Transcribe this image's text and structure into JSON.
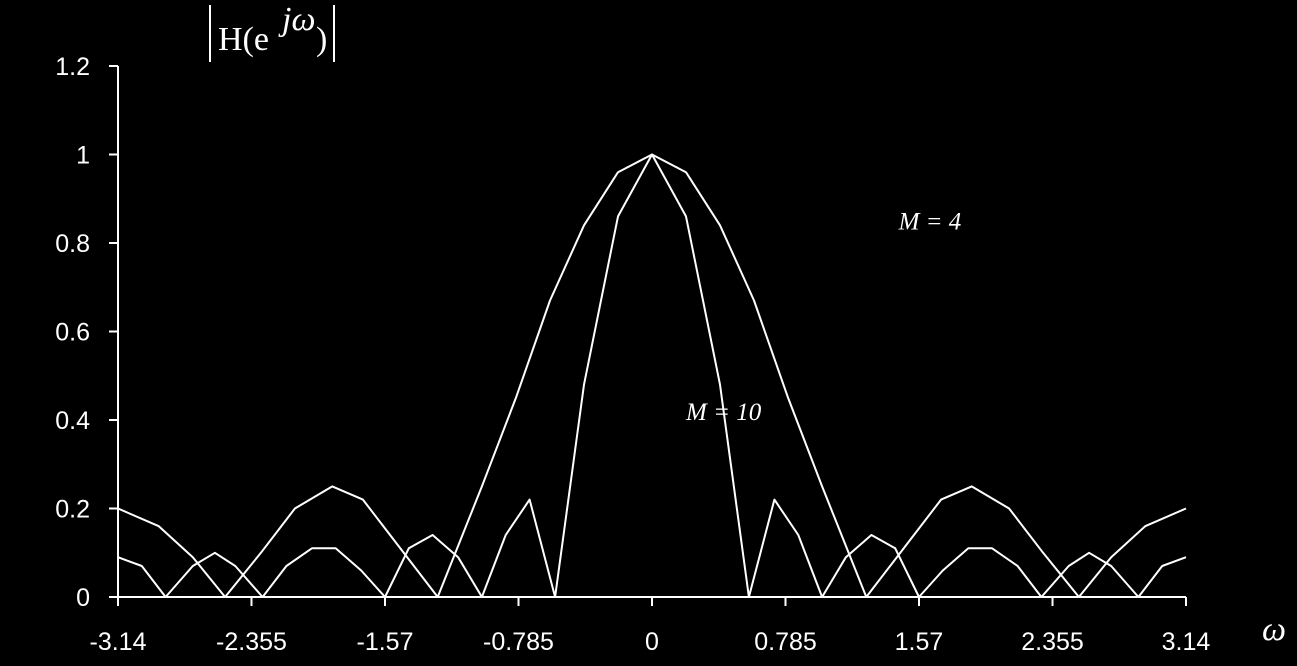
{
  "chart_data": {
    "type": "line",
    "title": "",
    "xlabel": "ω",
    "ylabel": "|H(e^jω)|",
    "xlim": [
      -3.14,
      3.14
    ],
    "ylim": [
      0,
      1.2
    ],
    "grid": false,
    "xticks": [
      -3.14,
      -2.355,
      -1.57,
      -0.785,
      0,
      0.785,
      1.57,
      2.355,
      3.14
    ],
    "xtick_labels": [
      "-3.14",
      "-2.355",
      "-1.57",
      "-0.785",
      "0",
      "0.785",
      "1.57",
      "2.355",
      "3.14"
    ],
    "yticks": [
      0,
      0.2,
      0.4,
      0.6,
      0.8,
      1,
      1.2
    ],
    "ytick_labels": [
      "0",
      "0.2",
      "0.4",
      "0.6",
      "0.8",
      "1",
      "1.2"
    ],
    "ylabel_parts": {
      "H": "H(e",
      "exp": "jω",
      "close": ")"
    },
    "series": [
      {
        "name": "M = 4",
        "x": [
          -3.14,
          -2.9,
          -2.7,
          -2.51,
          -2.3,
          -2.1,
          -1.88,
          -1.7,
          -1.5,
          -1.26,
          -1.0,
          -0.8,
          -0.6,
          -0.4,
          -0.2,
          0,
          0.2,
          0.4,
          0.6,
          0.8,
          1.0,
          1.26,
          1.5,
          1.7,
          1.88,
          2.1,
          2.3,
          2.51,
          2.7,
          2.9,
          3.14
        ],
        "y": [
          0.2,
          0.16,
          0.09,
          0.0,
          0.1,
          0.2,
          0.25,
          0.22,
          0.12,
          0.0,
          0.25,
          0.45,
          0.67,
          0.84,
          0.96,
          1.0,
          0.96,
          0.84,
          0.67,
          0.45,
          0.25,
          0.0,
          0.12,
          0.22,
          0.25,
          0.2,
          0.1,
          0.0,
          0.09,
          0.16,
          0.2
        ]
      },
      {
        "name": "M = 10",
        "x": [
          -3.14,
          -3.0,
          -2.86,
          -2.7,
          -2.57,
          -2.45,
          -2.29,
          -2.15,
          -2.0,
          -1.86,
          -1.71,
          -1.57,
          -1.43,
          -1.29,
          -1.14,
          -1.0,
          -0.86,
          -0.72,
          -0.57,
          -0.4,
          -0.2,
          0,
          0.2,
          0.4,
          0.57,
          0.72,
          0.86,
          1.0,
          1.14,
          1.29,
          1.43,
          1.57,
          1.71,
          1.86,
          2.0,
          2.15,
          2.29,
          2.45,
          2.57,
          2.7,
          2.86,
          3.0,
          3.14
        ],
        "y": [
          0.09,
          0.07,
          0.0,
          0.07,
          0.1,
          0.07,
          0.0,
          0.07,
          0.11,
          0.11,
          0.06,
          0.0,
          0.11,
          0.14,
          0.09,
          0.0,
          0.14,
          0.22,
          0.0,
          0.48,
          0.86,
          1.0,
          0.86,
          0.48,
          0.0,
          0.22,
          0.14,
          0.0,
          0.09,
          0.14,
          0.11,
          0.0,
          0.06,
          0.11,
          0.11,
          0.07,
          0.0,
          0.07,
          0.1,
          0.07,
          0.0,
          0.07,
          0.09
        ]
      }
    ],
    "annotations": [
      {
        "text": "M = 4",
        "x": 1.45,
        "y": 0.83
      },
      {
        "text": "M = 10",
        "x": 0.2,
        "y": 0.4
      }
    ]
  }
}
